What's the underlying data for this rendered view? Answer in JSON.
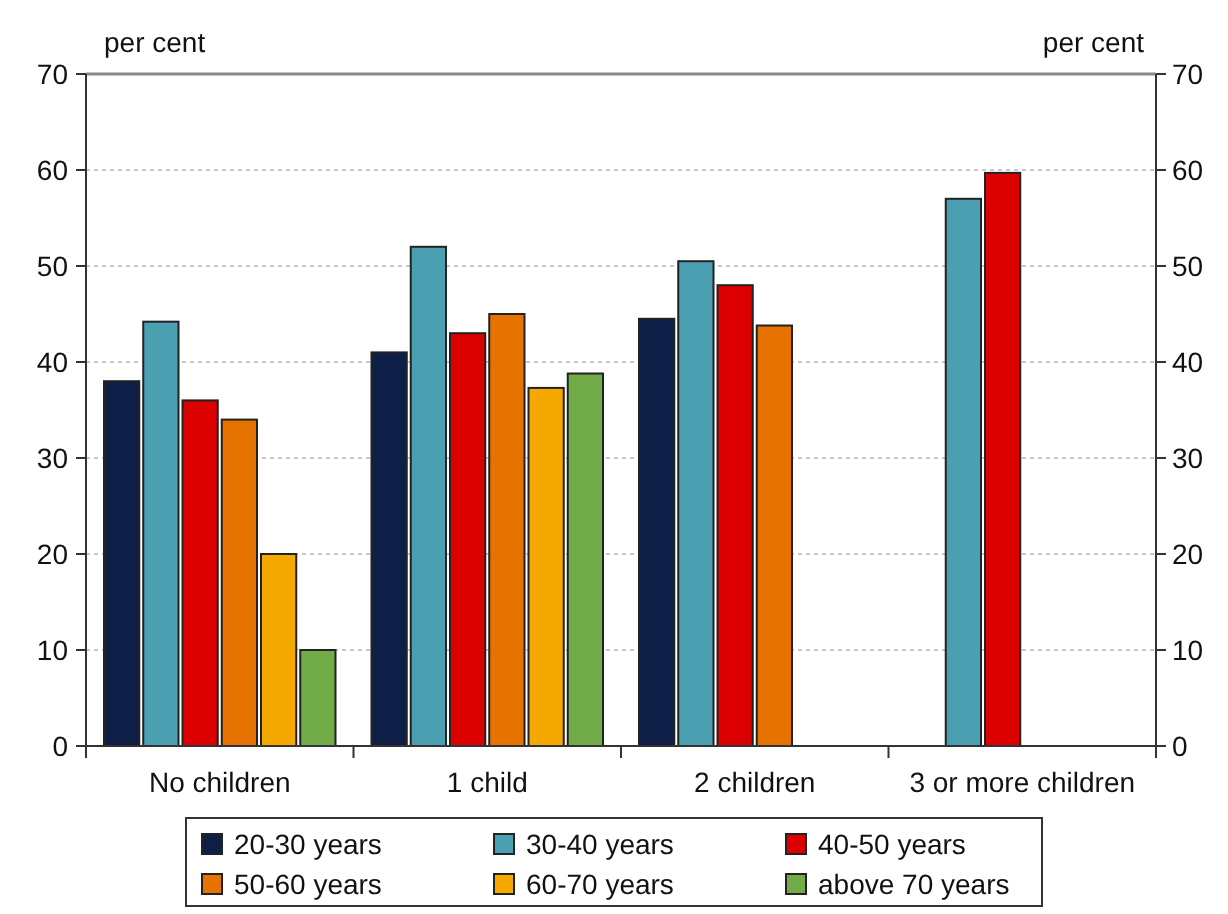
{
  "chart_data": {
    "type": "bar",
    "ylabel": "per cent",
    "y2label": "per cent",
    "categories": [
      "No children",
      "1 child",
      "2 children",
      "3 or more children"
    ],
    "series": [
      {
        "name": "20-30 years",
        "color": "#0e1f47",
        "values": [
          38,
          41,
          44.5,
          null
        ]
      },
      {
        "name": "30-40 years",
        "color": "#4aa0b0",
        "values": [
          44.2,
          52,
          50.5,
          57
        ]
      },
      {
        "name": "40-50 years",
        "color": "#dc0000",
        "values": [
          36,
          43,
          48,
          59.7
        ]
      },
      {
        "name": "50-60 years",
        "color": "#e67300",
        "values": [
          34,
          45,
          43.8,
          null
        ]
      },
      {
        "name": "60-70 years",
        "color": "#f5a800",
        "values": [
          20,
          37.3,
          null,
          null
        ]
      },
      {
        "name": "above 70 years",
        "color": "#72ac48",
        "values": [
          10,
          38.8,
          null,
          null
        ]
      }
    ],
    "ylim": [
      0,
      70
    ],
    "yticks": [
      0,
      10,
      20,
      30,
      40,
      50,
      60,
      70
    ],
    "y2lim": [
      0,
      70
    ],
    "y2ticks": [
      0,
      10,
      20,
      30,
      40,
      50,
      60,
      70
    ],
    "grid": "y",
    "legend": "bottom"
  }
}
